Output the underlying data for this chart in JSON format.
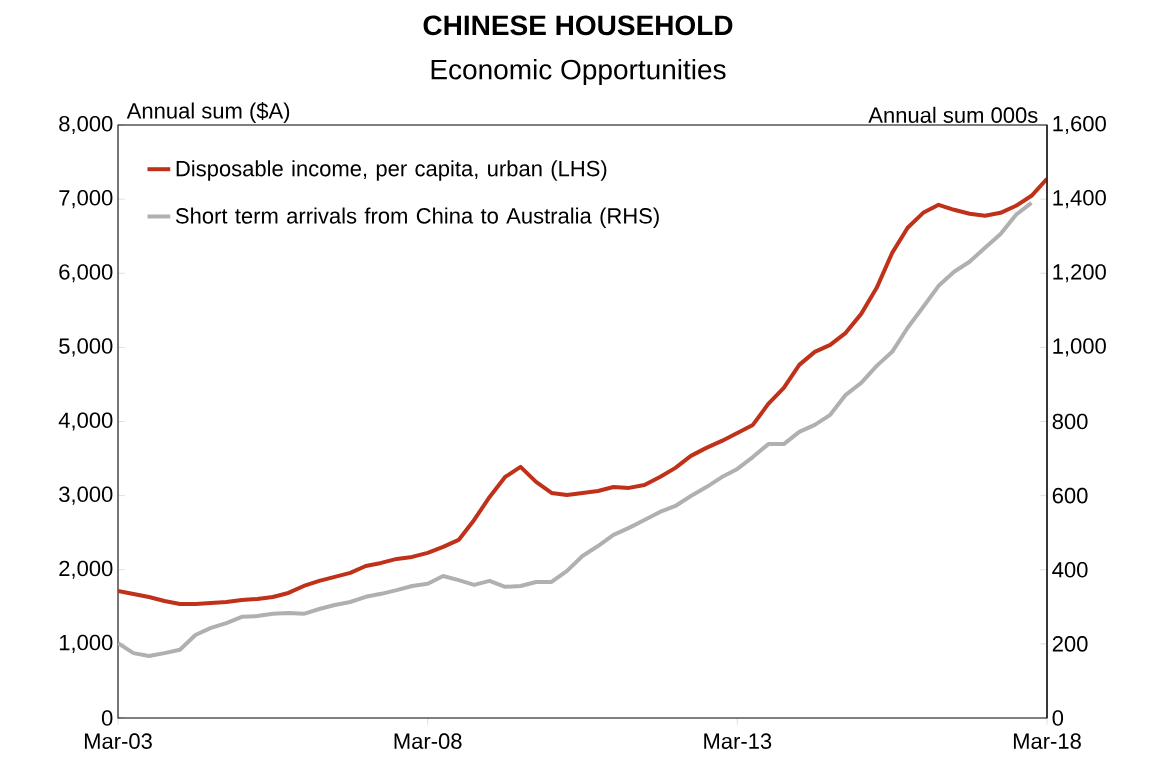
{
  "chart_data": {
    "type": "line",
    "title": "CHINESE HOUSEHOLD",
    "subtitle": "Economic Opportunities",
    "ylabel": "Annual sum ($A)",
    "y2label": "Annual sum 000s",
    "x": [
      "2003-03",
      "2003-06",
      "2003-09",
      "2003-12",
      "2004-03",
      "2004-06",
      "2004-09",
      "2004-12",
      "2005-03",
      "2005-06",
      "2005-09",
      "2005-12",
      "2006-03",
      "2006-06",
      "2006-09",
      "2006-12",
      "2007-03",
      "2007-06",
      "2007-09",
      "2007-12",
      "2008-03",
      "2008-06",
      "2008-09",
      "2008-12",
      "2009-03",
      "2009-06",
      "2009-09",
      "2009-12",
      "2010-03",
      "2010-06",
      "2010-09",
      "2010-12",
      "2011-03",
      "2011-06",
      "2011-09",
      "2011-12",
      "2012-03",
      "2012-06",
      "2012-09",
      "2012-12",
      "2013-03",
      "2013-06",
      "2013-09",
      "2013-12",
      "2014-03",
      "2014-06",
      "2014-09",
      "2014-12",
      "2015-03",
      "2015-06",
      "2015-09",
      "2015-12",
      "2016-03",
      "2016-06",
      "2016-09",
      "2016-12",
      "2017-03",
      "2017-06",
      "2017-09",
      "2017-12",
      "2018-03"
    ],
    "series": [
      {
        "name": "Disposable income, per capita, urban (LHS)",
        "color": "#c0311a",
        "values": [
          1714,
          1673,
          1633,
          1579,
          1538,
          1538,
          1552,
          1565,
          1592,
          1606,
          1633,
          1687,
          1781,
          1849,
          1903,
          1957,
          2051,
          2092,
          2146,
          2173,
          2227,
          2308,
          2402,
          2672,
          2982,
          3252,
          3387,
          3185,
          3036,
          3009,
          3036,
          3063,
          3117,
          3104,
          3144,
          3252,
          3374,
          3536,
          3644,
          3738,
          3846,
          3954,
          4237,
          4453,
          4764,
          4939,
          5034,
          5196,
          5452,
          5803,
          6275,
          6613,
          6815,
          6923,
          6856,
          6802,
          6775,
          6815,
          6910,
          7045,
          7274
        ]
      },
      {
        "name": "Short term arrivals from China  to Australia (RHS)",
        "color": "#b0b0b0",
        "axis": "y2",
        "values": [
          202,
          175,
          167,
          175,
          184,
          224,
          243,
          256,
          273,
          275,
          281,
          283,
          281,
          294,
          305,
          313,
          327,
          335,
          345,
          356,
          362,
          383,
          372,
          359,
          370,
          354,
          356,
          367,
          367,
          397,
          437,
          464,
          494,
          513,
          534,
          556,
          572,
          599,
          623,
          650,
          672,
          704,
          739,
          739,
          772,
          791,
          818,
          872,
          904,
          950,
          988,
          1053,
          1109,
          1166,
          1204,
          1231,
          1269,
          1306,
          1358,
          1390,
          null
        ]
      }
    ],
    "xlim": [
      "2003-03",
      "2018-03"
    ],
    "xticks": [
      {
        "value": "2003-03",
        "label": "Mar-03"
      },
      {
        "value": "2008-03",
        "label": "Mar-08"
      },
      {
        "value": "2013-03",
        "label": "Mar-13"
      },
      {
        "value": "2018-03",
        "label": "Mar-18"
      }
    ],
    "ylim": [
      0,
      8000
    ],
    "yticks": [
      0,
      {
        "value": 1000,
        "label": "1,000"
      },
      {
        "value": 2000,
        "label": "2,000"
      },
      {
        "value": 3000,
        "label": "3,000"
      },
      {
        "value": 4000,
        "label": "4,000"
      },
      {
        "value": 5000,
        "label": "5,000"
      },
      {
        "value": 6000,
        "label": "6,000"
      },
      {
        "value": 7000,
        "label": "7,000"
      },
      {
        "value": 8000,
        "label": "8,000"
      }
    ],
    "y2lim": [
      0,
      1600
    ],
    "y2ticks": [
      0,
      200,
      400,
      600,
      800,
      {
        "value": 1000,
        "label": "1,000"
      },
      {
        "value": 1200,
        "label": "1,200"
      },
      {
        "value": 1400,
        "label": "1,400"
      },
      {
        "value": 1600,
        "label": "1,600"
      }
    ],
    "legend": "top left",
    "marker": "none"
  }
}
